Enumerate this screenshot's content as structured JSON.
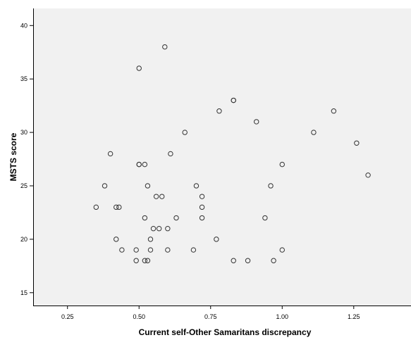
{
  "chart_data": {
    "type": "scatter",
    "title": "",
    "xlabel": "Current self-Other Samaritans discrepancy",
    "ylabel": "MSTS score",
    "xlim": [
      0.13,
      1.45
    ],
    "ylim": [
      13.8,
      41.6
    ],
    "xticks": [
      "0.25",
      "0.50",
      "0.75",
      "1.00",
      "1.25"
    ],
    "yticks": [
      "15",
      "20",
      "25",
      "30",
      "35",
      "40"
    ],
    "grid": false,
    "legend": "none",
    "colors": {
      "background": "#f1f1f1",
      "marker_stroke": "#333333",
      "axis": "#000000"
    },
    "series": [
      {
        "points": [
          [
            0.35,
            23
          ],
          [
            0.38,
            25
          ],
          [
            0.4,
            28
          ],
          [
            0.42,
            23
          ],
          [
            0.42,
            20
          ],
          [
            0.43,
            23
          ],
          [
            0.44,
            19
          ],
          [
            0.49,
            19
          ],
          [
            0.49,
            18
          ],
          [
            0.5,
            27
          ],
          [
            0.5,
            27
          ],
          [
            0.5,
            36
          ],
          [
            0.52,
            27
          ],
          [
            0.52,
            22
          ],
          [
            0.52,
            18
          ],
          [
            0.53,
            18
          ],
          [
            0.53,
            25
          ],
          [
            0.54,
            19
          ],
          [
            0.54,
            20
          ],
          [
            0.55,
            21
          ],
          [
            0.56,
            24
          ],
          [
            0.57,
            21
          ],
          [
            0.58,
            24
          ],
          [
            0.59,
            38
          ],
          [
            0.6,
            21
          ],
          [
            0.6,
            19
          ],
          [
            0.61,
            28
          ],
          [
            0.63,
            22
          ],
          [
            0.66,
            30
          ],
          [
            0.69,
            19
          ],
          [
            0.7,
            25
          ],
          [
            0.72,
            24
          ],
          [
            0.72,
            23
          ],
          [
            0.72,
            22
          ],
          [
            0.77,
            20
          ],
          [
            0.78,
            32
          ],
          [
            0.83,
            33
          ],
          [
            0.83,
            33
          ],
          [
            0.83,
            18
          ],
          [
            0.88,
            18
          ],
          [
            0.91,
            31
          ],
          [
            0.94,
            22
          ],
          [
            0.96,
            25
          ],
          [
            0.97,
            18
          ],
          [
            1.0,
            27
          ],
          [
            1.0,
            19
          ],
          [
            1.11,
            30
          ],
          [
            1.18,
            32
          ],
          [
            1.26,
            29
          ],
          [
            1.3,
            26
          ]
        ]
      }
    ]
  }
}
